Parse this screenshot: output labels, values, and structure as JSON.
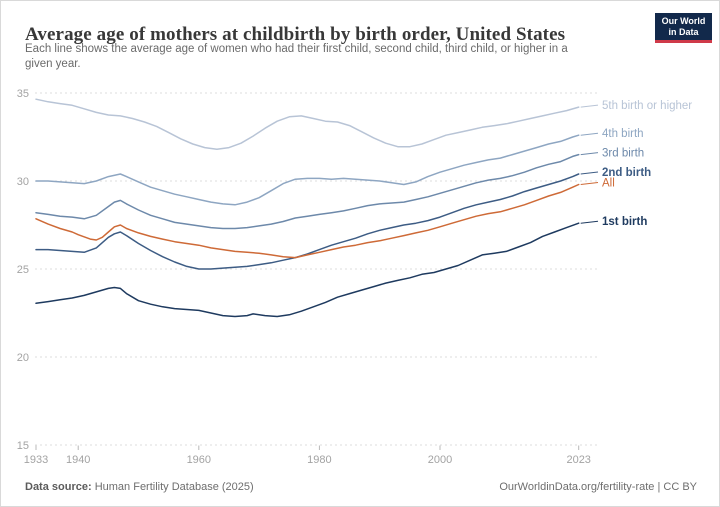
{
  "logo": {
    "line1": "Our World",
    "line2": "in Data"
  },
  "colors": {
    "logo_bg": "#12294b",
    "logo_stripe": "#cf3a49",
    "grid": "#dddddd",
    "axis_text": "#a3a3a3",
    "title_text": "#383838",
    "subtitle_text": "#6b6b6b",
    "footer_text": "#6e6e6e"
  },
  "chart_data": {
    "type": "line",
    "title": "Average age of mothers at childbirth by birth order, United States",
    "subtitle_lines": [
      "Each line shows the average age of women who had their first child, second child, third child, or higher in a",
      "given year."
    ],
    "source_label": "Data source:",
    "source": "Human Fertility Database (2025)",
    "credit": "OurWorldinData.org/fertility-rate | CC BY",
    "xlabel": "",
    "ylabel": "",
    "xlim": [
      1933,
      2023
    ],
    "ylim": [
      15,
      35
    ],
    "x_ticks": [
      1933,
      1940,
      1960,
      1980,
      2000,
      2023
    ],
    "y_ticks": [
      15,
      20,
      25,
      30,
      35
    ],
    "grid": "horizontal-dashed",
    "legend_position": "labels-right-of-lines",
    "series": [
      {
        "name": "5th birth or higher",
        "color": "#b8c4d6",
        "bold": false,
        "points": [
          [
            1933,
            34.65
          ],
          [
            1935,
            34.5
          ],
          [
            1937,
            34.4
          ],
          [
            1939,
            34.3
          ],
          [
            1941,
            34.1
          ],
          [
            1943,
            33.9
          ],
          [
            1945,
            33.75
          ],
          [
            1947,
            33.7
          ],
          [
            1949,
            33.55
          ],
          [
            1951,
            33.35
          ],
          [
            1953,
            33.1
          ],
          [
            1955,
            32.75
          ],
          [
            1957,
            32.4
          ],
          [
            1959,
            32.1
          ],
          [
            1961,
            31.9
          ],
          [
            1963,
            31.8
          ],
          [
            1965,
            31.9
          ],
          [
            1967,
            32.15
          ],
          [
            1969,
            32.55
          ],
          [
            1971,
            33.0
          ],
          [
            1973,
            33.4
          ],
          [
            1975,
            33.65
          ],
          [
            1977,
            33.7
          ],
          [
            1979,
            33.55
          ],
          [
            1981,
            33.4
          ],
          [
            1983,
            33.35
          ],
          [
            1985,
            33.15
          ],
          [
            1987,
            32.8
          ],
          [
            1989,
            32.45
          ],
          [
            1991,
            32.15
          ],
          [
            1993,
            31.95
          ],
          [
            1995,
            31.95
          ],
          [
            1997,
            32.1
          ],
          [
            1999,
            32.35
          ],
          [
            2001,
            32.6
          ],
          [
            2003,
            32.75
          ],
          [
            2005,
            32.9
          ],
          [
            2007,
            33.05
          ],
          [
            2009,
            33.15
          ],
          [
            2011,
            33.25
          ],
          [
            2013,
            33.4
          ],
          [
            2015,
            33.55
          ],
          [
            2017,
            33.7
          ],
          [
            2019,
            33.85
          ],
          [
            2021,
            34.0
          ],
          [
            2023,
            34.2
          ]
        ]
      },
      {
        "name": "4th birth",
        "color": "#8ea6c2",
        "bold": false,
        "points": [
          [
            1933,
            30.0
          ],
          [
            1935,
            30.0
          ],
          [
            1937,
            29.95
          ],
          [
            1939,
            29.9
          ],
          [
            1941,
            29.85
          ],
          [
            1943,
            30.0
          ],
          [
            1945,
            30.25
          ],
          [
            1947,
            30.4
          ],
          [
            1948,
            30.25
          ],
          [
            1950,
            29.95
          ],
          [
            1952,
            29.65
          ],
          [
            1954,
            29.45
          ],
          [
            1956,
            29.25
          ],
          [
            1958,
            29.1
          ],
          [
            1960,
            28.95
          ],
          [
            1962,
            28.8
          ],
          [
            1964,
            28.7
          ],
          [
            1966,
            28.65
          ],
          [
            1968,
            28.8
          ],
          [
            1970,
            29.05
          ],
          [
            1972,
            29.45
          ],
          [
            1974,
            29.85
          ],
          [
            1976,
            30.1
          ],
          [
            1978,
            30.15
          ],
          [
            1980,
            30.15
          ],
          [
            1982,
            30.1
          ],
          [
            1984,
            30.15
          ],
          [
            1986,
            30.1
          ],
          [
            1988,
            30.05
          ],
          [
            1990,
            30.0
          ],
          [
            1992,
            29.9
          ],
          [
            1994,
            29.8
          ],
          [
            1996,
            29.95
          ],
          [
            1998,
            30.25
          ],
          [
            2000,
            30.5
          ],
          [
            2002,
            30.7
          ],
          [
            2004,
            30.9
          ],
          [
            2006,
            31.05
          ],
          [
            2008,
            31.2
          ],
          [
            2010,
            31.3
          ],
          [
            2012,
            31.5
          ],
          [
            2014,
            31.7
          ],
          [
            2016,
            31.9
          ],
          [
            2018,
            32.1
          ],
          [
            2020,
            32.25
          ],
          [
            2022,
            32.5
          ],
          [
            2023,
            32.6
          ]
        ]
      },
      {
        "name": "3rd birth",
        "color": "#6d89aa",
        "bold": false,
        "points": [
          [
            1933,
            28.2
          ],
          [
            1935,
            28.1
          ],
          [
            1937,
            28.0
          ],
          [
            1939,
            27.95
          ],
          [
            1941,
            27.85
          ],
          [
            1943,
            28.05
          ],
          [
            1945,
            28.55
          ],
          [
            1946,
            28.8
          ],
          [
            1947,
            28.9
          ],
          [
            1948,
            28.7
          ],
          [
            1950,
            28.35
          ],
          [
            1952,
            28.05
          ],
          [
            1954,
            27.85
          ],
          [
            1956,
            27.65
          ],
          [
            1958,
            27.55
          ],
          [
            1960,
            27.45
          ],
          [
            1962,
            27.35
          ],
          [
            1964,
            27.3
          ],
          [
            1966,
            27.3
          ],
          [
            1968,
            27.35
          ],
          [
            1970,
            27.45
          ],
          [
            1972,
            27.55
          ],
          [
            1974,
            27.7
          ],
          [
            1976,
            27.9
          ],
          [
            1978,
            28.0
          ],
          [
            1980,
            28.1
          ],
          [
            1982,
            28.2
          ],
          [
            1984,
            28.3
          ],
          [
            1986,
            28.45
          ],
          [
            1988,
            28.6
          ],
          [
            1990,
            28.7
          ],
          [
            1992,
            28.75
          ],
          [
            1994,
            28.8
          ],
          [
            1996,
            28.95
          ],
          [
            1998,
            29.1
          ],
          [
            2000,
            29.3
          ],
          [
            2002,
            29.5
          ],
          [
            2004,
            29.7
          ],
          [
            2006,
            29.9
          ],
          [
            2008,
            30.05
          ],
          [
            2010,
            30.15
          ],
          [
            2012,
            30.3
          ],
          [
            2014,
            30.5
          ],
          [
            2016,
            30.75
          ],
          [
            2018,
            30.95
          ],
          [
            2020,
            31.1
          ],
          [
            2022,
            31.4
          ],
          [
            2023,
            31.5
          ]
        ]
      },
      {
        "name": "2nd birth",
        "color": "#3d5c84",
        "bold": true,
        "points": [
          [
            1933,
            26.1
          ],
          [
            1935,
            26.1
          ],
          [
            1937,
            26.05
          ],
          [
            1939,
            26.0
          ],
          [
            1941,
            25.95
          ],
          [
            1943,
            26.2
          ],
          [
            1945,
            26.8
          ],
          [
            1946,
            27.0
          ],
          [
            1947,
            27.1
          ],
          [
            1948,
            26.9
          ],
          [
            1950,
            26.45
          ],
          [
            1952,
            26.05
          ],
          [
            1954,
            25.7
          ],
          [
            1956,
            25.4
          ],
          [
            1958,
            25.15
          ],
          [
            1960,
            25.0
          ],
          [
            1962,
            25.0
          ],
          [
            1964,
            25.05
          ],
          [
            1966,
            25.1
          ],
          [
            1968,
            25.15
          ],
          [
            1970,
            25.25
          ],
          [
            1972,
            25.35
          ],
          [
            1974,
            25.5
          ],
          [
            1976,
            25.65
          ],
          [
            1978,
            25.85
          ],
          [
            1980,
            26.1
          ],
          [
            1982,
            26.35
          ],
          [
            1984,
            26.55
          ],
          [
            1986,
            26.75
          ],
          [
            1988,
            27.0
          ],
          [
            1990,
            27.2
          ],
          [
            1992,
            27.35
          ],
          [
            1994,
            27.5
          ],
          [
            1996,
            27.6
          ],
          [
            1998,
            27.75
          ],
          [
            2000,
            27.95
          ],
          [
            2002,
            28.2
          ],
          [
            2004,
            28.45
          ],
          [
            2006,
            28.65
          ],
          [
            2008,
            28.8
          ],
          [
            2010,
            28.95
          ],
          [
            2012,
            29.15
          ],
          [
            2014,
            29.4
          ],
          [
            2016,
            29.6
          ],
          [
            2018,
            29.8
          ],
          [
            2020,
            30.0
          ],
          [
            2022,
            30.25
          ],
          [
            2023,
            30.4
          ]
        ]
      },
      {
        "name": "All",
        "color": "#ce6a37",
        "bold": false,
        "points": [
          [
            1933,
            27.85
          ],
          [
            1935,
            27.55
          ],
          [
            1937,
            27.3
          ],
          [
            1939,
            27.1
          ],
          [
            1940,
            26.95
          ],
          [
            1942,
            26.7
          ],
          [
            1943,
            26.65
          ],
          [
            1944,
            26.8
          ],
          [
            1945,
            27.1
          ],
          [
            1946,
            27.4
          ],
          [
            1947,
            27.5
          ],
          [
            1948,
            27.3
          ],
          [
            1950,
            27.05
          ],
          [
            1952,
            26.85
          ],
          [
            1954,
            26.7
          ],
          [
            1956,
            26.55
          ],
          [
            1958,
            26.45
          ],
          [
            1960,
            26.35
          ],
          [
            1962,
            26.2
          ],
          [
            1964,
            26.1
          ],
          [
            1966,
            26.0
          ],
          [
            1968,
            25.95
          ],
          [
            1970,
            25.9
          ],
          [
            1972,
            25.8
          ],
          [
            1974,
            25.7
          ],
          [
            1976,
            25.65
          ],
          [
            1978,
            25.8
          ],
          [
            1980,
            25.95
          ],
          [
            1982,
            26.1
          ],
          [
            1984,
            26.25
          ],
          [
            1986,
            26.35
          ],
          [
            1988,
            26.5
          ],
          [
            1990,
            26.6
          ],
          [
            1992,
            26.75
          ],
          [
            1994,
            26.9
          ],
          [
            1996,
            27.05
          ],
          [
            1998,
            27.2
          ],
          [
            2000,
            27.4
          ],
          [
            2002,
            27.6
          ],
          [
            2004,
            27.8
          ],
          [
            2006,
            28.0
          ],
          [
            2008,
            28.15
          ],
          [
            2010,
            28.25
          ],
          [
            2012,
            28.45
          ],
          [
            2014,
            28.65
          ],
          [
            2016,
            28.9
          ],
          [
            2018,
            29.15
          ],
          [
            2020,
            29.35
          ],
          [
            2022,
            29.65
          ],
          [
            2023,
            29.8
          ]
        ]
      },
      {
        "name": "1st birth",
        "color": "#1e3a5f",
        "bold": true,
        "points": [
          [
            1933,
            23.05
          ],
          [
            1935,
            23.15
          ],
          [
            1937,
            23.25
          ],
          [
            1939,
            23.35
          ],
          [
            1941,
            23.5
          ],
          [
            1943,
            23.7
          ],
          [
            1945,
            23.9
          ],
          [
            1946,
            23.95
          ],
          [
            1947,
            23.9
          ],
          [
            1948,
            23.6
          ],
          [
            1950,
            23.2
          ],
          [
            1952,
            23.0
          ],
          [
            1954,
            22.85
          ],
          [
            1956,
            22.75
          ],
          [
            1958,
            22.7
          ],
          [
            1960,
            22.65
          ],
          [
            1962,
            22.5
          ],
          [
            1964,
            22.35
          ],
          [
            1966,
            22.3
          ],
          [
            1968,
            22.35
          ],
          [
            1969,
            22.45
          ],
          [
            1971,
            22.35
          ],
          [
            1973,
            22.3
          ],
          [
            1975,
            22.4
          ],
          [
            1977,
            22.6
          ],
          [
            1979,
            22.85
          ],
          [
            1981,
            23.1
          ],
          [
            1983,
            23.4
          ],
          [
            1985,
            23.6
          ],
          [
            1987,
            23.8
          ],
          [
            1989,
            24.0
          ],
          [
            1991,
            24.2
          ],
          [
            1993,
            24.35
          ],
          [
            1995,
            24.5
          ],
          [
            1997,
            24.7
          ],
          [
            1999,
            24.8
          ],
          [
            2001,
            25.0
          ],
          [
            2003,
            25.2
          ],
          [
            2005,
            25.5
          ],
          [
            2007,
            25.8
          ],
          [
            2009,
            25.9
          ],
          [
            2011,
            26.0
          ],
          [
            2013,
            26.25
          ],
          [
            2015,
            26.5
          ],
          [
            2017,
            26.85
          ],
          [
            2019,
            27.1
          ],
          [
            2021,
            27.35
          ],
          [
            2023,
            27.6
          ]
        ]
      }
    ]
  }
}
